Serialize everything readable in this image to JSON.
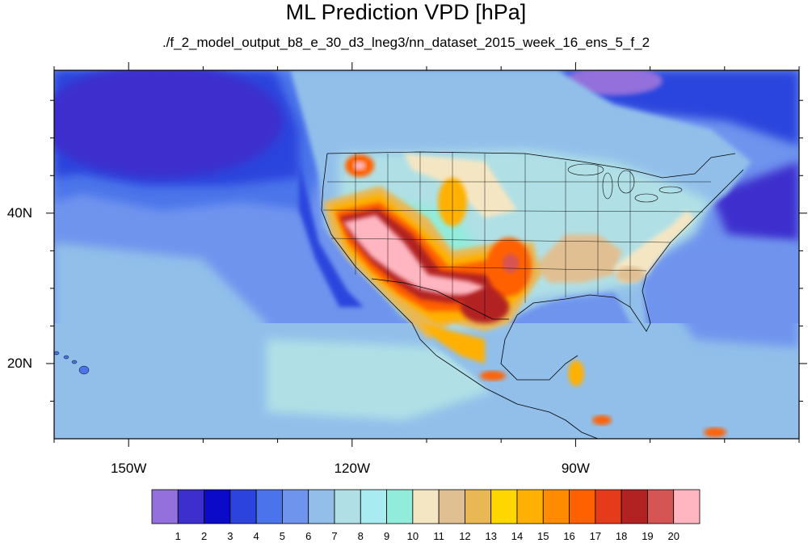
{
  "title": "ML Prediction VPD [hPa]",
  "subtitle": "./f_2_model_output_b8_e_30_d3_lneg3/nn_dataset_2015_week_16_ens_5_f_2",
  "map": {
    "lon_range": [
      -160,
      -60
    ],
    "lat_range": [
      10,
      59
    ],
    "lon_ticks": [
      {
        "value": -150,
        "label": "150W"
      },
      {
        "value": -120,
        "label": "120W"
      },
      {
        "value": -90,
        "label": "90W"
      }
    ],
    "lat_ticks": [
      {
        "value": 20,
        "label": "20N"
      },
      {
        "value": 40,
        "label": "40N"
      }
    ]
  },
  "colorbar": {
    "labels": [
      "1",
      "2",
      "3",
      "4",
      "5",
      "6",
      "7",
      "8",
      "9",
      "10",
      "11",
      "12",
      "13",
      "14",
      "15",
      "16",
      "17",
      "18",
      "19",
      "20"
    ],
    "colors": [
      "#9370db",
      "#3c2fcd",
      "#0a0ac8",
      "#2c44dd",
      "#4c74ea",
      "#6f94ee",
      "#91bfea",
      "#b0e0e6",
      "#a8ecf2",
      "#92ecdc",
      "#f5e6c3",
      "#e0c093",
      "#e9b753",
      "#ffd700",
      "#ffb000",
      "#ff8c00",
      "#ff6000",
      "#e53b1a",
      "#b22222",
      "#d55454",
      "#ffb6c1"
    ]
  },
  "colors": {
    "ocean_deep": "#3c2fcd",
    "ocean": "#2c44dd",
    "ocean_mid": "#4c74ea",
    "ocean_light": "#91bfea",
    "land_light": "#b0e0e6"
  }
}
